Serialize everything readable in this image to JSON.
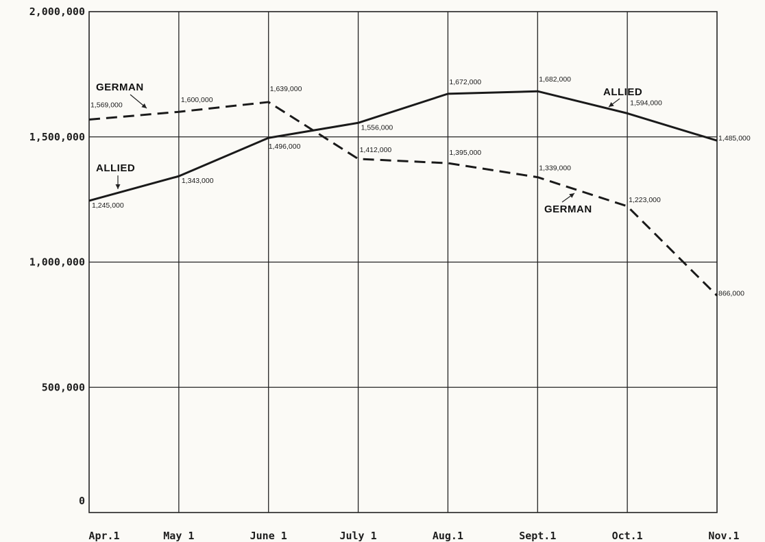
{
  "chart_data": {
    "type": "line",
    "title": "",
    "xlabel": "",
    "ylabel": "",
    "categories": [
      "Apr.1",
      "May 1",
      "June 1",
      "July 1",
      "Aug.1",
      "Sept.1",
      "Oct.1",
      "Nov.1"
    ],
    "ylim": [
      0,
      2000000
    ],
    "yticks": [
      0,
      500000,
      1000000,
      1500000,
      2000000
    ],
    "ytick_labels": [
      "0",
      "500,000",
      "1,000,000",
      "1,500,000",
      "2,000,000"
    ],
    "grid": true,
    "series": [
      {
        "name": "GERMAN",
        "style": "dashed",
        "color": "#1a1a1a",
        "values": [
          1569000,
          1600000,
          1639000,
          1412000,
          1395000,
          1339000,
          1223000,
          866000
        ],
        "data_labels": [
          "1,569,000",
          "1,600,000",
          "1,639,000",
          "1,412,000",
          "1,395,000",
          "1,339,000",
          "1,223,000",
          "866,000"
        ]
      },
      {
        "name": "ALLIED",
        "style": "solid",
        "color": "#1a1a1a",
        "values": [
          1245000,
          1343000,
          1496000,
          1556000,
          1672000,
          1682000,
          1594000,
          1485000
        ],
        "data_labels": [
          "1,245,000",
          "1,343,000",
          "1,496,000",
          "1,556,000",
          "1,672,000",
          "1,682,000",
          "1,594,000",
          "1,485,000"
        ]
      }
    ],
    "annotations": [
      {
        "text": "GERMAN",
        "series": "GERMAN"
      },
      {
        "text": "GERMAN",
        "series": "GERMAN"
      },
      {
        "text": "ALLIED",
        "series": "ALLIED"
      },
      {
        "text": "ALLIED",
        "series": "ALLIED"
      }
    ]
  }
}
